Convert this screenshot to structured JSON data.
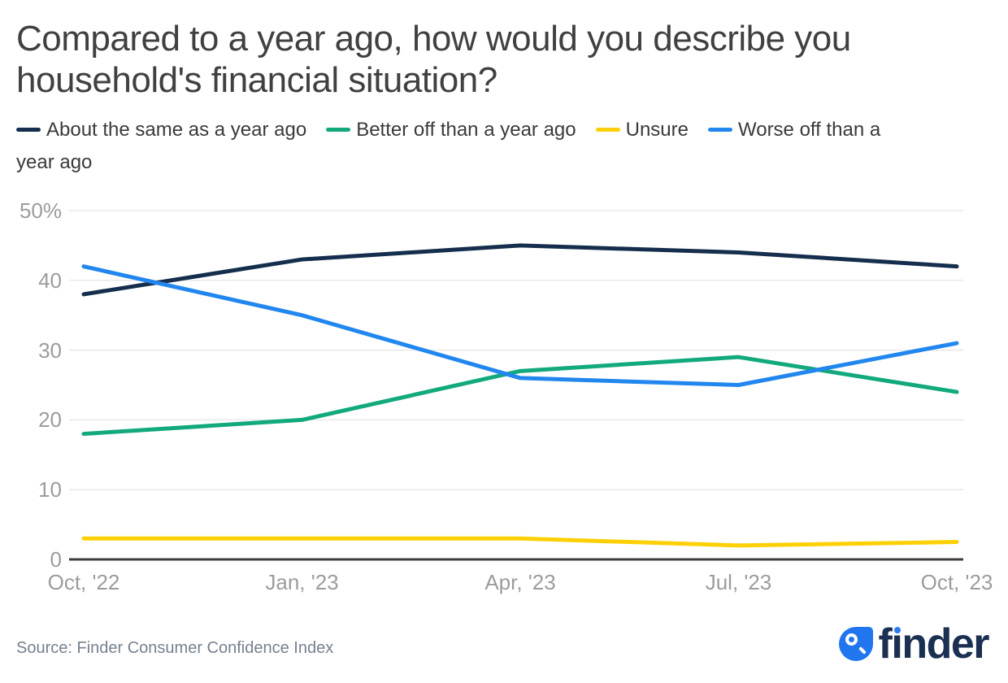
{
  "title": "Compared to a year ago, how would you describe you household's financial situation?",
  "chart_data": {
    "type": "line",
    "x": [
      "Oct, '22",
      "Jan, '23",
      "Apr, '23",
      "Jul, '23",
      "Oct, '23"
    ],
    "y_axis": {
      "ticks": [
        {
          "label": "50%",
          "value": 50
        },
        {
          "label": "40",
          "value": 40
        },
        {
          "label": "30",
          "value": 30
        },
        {
          "label": "20",
          "value": 20
        },
        {
          "label": "10",
          "value": 10
        },
        {
          "label": "0",
          "value": 0
        }
      ],
      "range": [
        0,
        50
      ]
    },
    "grid": true,
    "legend_position": "top",
    "series": [
      {
        "name": "About the same as a year ago",
        "color": "#152e4d",
        "values": [
          38,
          43,
          45,
          44,
          42
        ]
      },
      {
        "name": "Better off than a year ago",
        "color": "#12a97d",
        "values": [
          18,
          20,
          27,
          29,
          24
        ]
      },
      {
        "name": "Unsure",
        "color": "#fdd005",
        "values": [
          3,
          3,
          3,
          2,
          2.5
        ]
      },
      {
        "name": "Worse off than a year ago",
        "color": "#2187ee",
        "values": [
          42,
          35,
          26,
          25,
          31
        ]
      }
    ],
    "colors": {
      "gridline": "#e8e8e8",
      "axis_line": "#3c3c3c",
      "tick_text": "#9c9c9c"
    }
  },
  "footer": {
    "source": "Source: Finder Consumer Confidence Index",
    "logo": {
      "brand": "finder",
      "wordmark_pre": "f",
      "wordmark_i": "ı",
      "wordmark_post": "nder",
      "drop_color": "#2176f0",
      "dot_color": "#2b7cf2",
      "text_color": "#1b2f52"
    }
  }
}
